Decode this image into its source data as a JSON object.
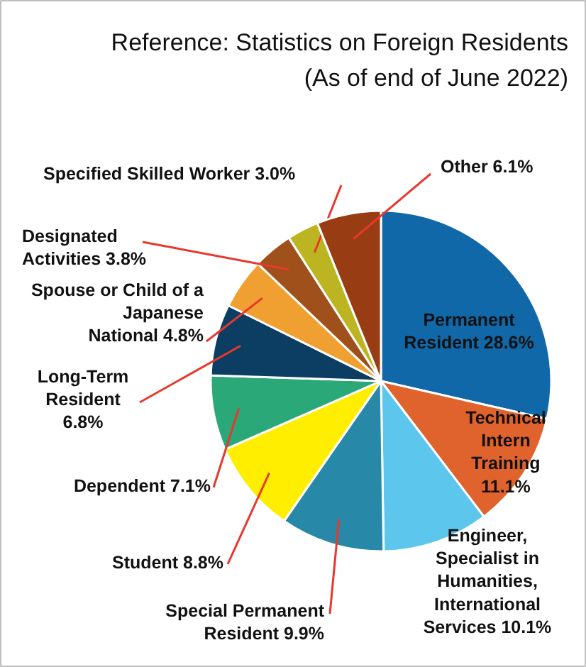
{
  "chart_data": {
    "type": "pie",
    "title": "Reference: Statistics on Foreign Residents",
    "subtitle": "(As of end of June 2022)",
    "categories": [
      "Permanent\nResident",
      "Technical\nIntern\nTraining",
      "Engineer,\nSpecialist in\nHumanities,\nInternational\nServices",
      "Special Permanent\nResident",
      "Student",
      "Dependent",
      "Long-Term\nResident",
      "Spouse or Child of a\nJapanese\nNational",
      "Designated\nActivities",
      "Specified Skilled Worker",
      "Other"
    ],
    "values": [
      28.6,
      11.1,
      10.1,
      9.9,
      8.8,
      7.1,
      6.8,
      4.8,
      3.8,
      3.0,
      6.1
    ],
    "value_labels": [
      "28.6%",
      "11.1%",
      "10.1%",
      "9.9%",
      "8.8%",
      "7.1%",
      "6.8%",
      "4.8%",
      "3.8%",
      "3.0%",
      "6.1%"
    ],
    "colors": [
      "#1068a8",
      "#e0622c",
      "#5cc6ec",
      "#2888a8",
      "#ffee00",
      "#2aa878",
      "#0c3e64",
      "#f0a030",
      "#a0501a",
      "#bcb420",
      "#983c14"
    ]
  }
}
